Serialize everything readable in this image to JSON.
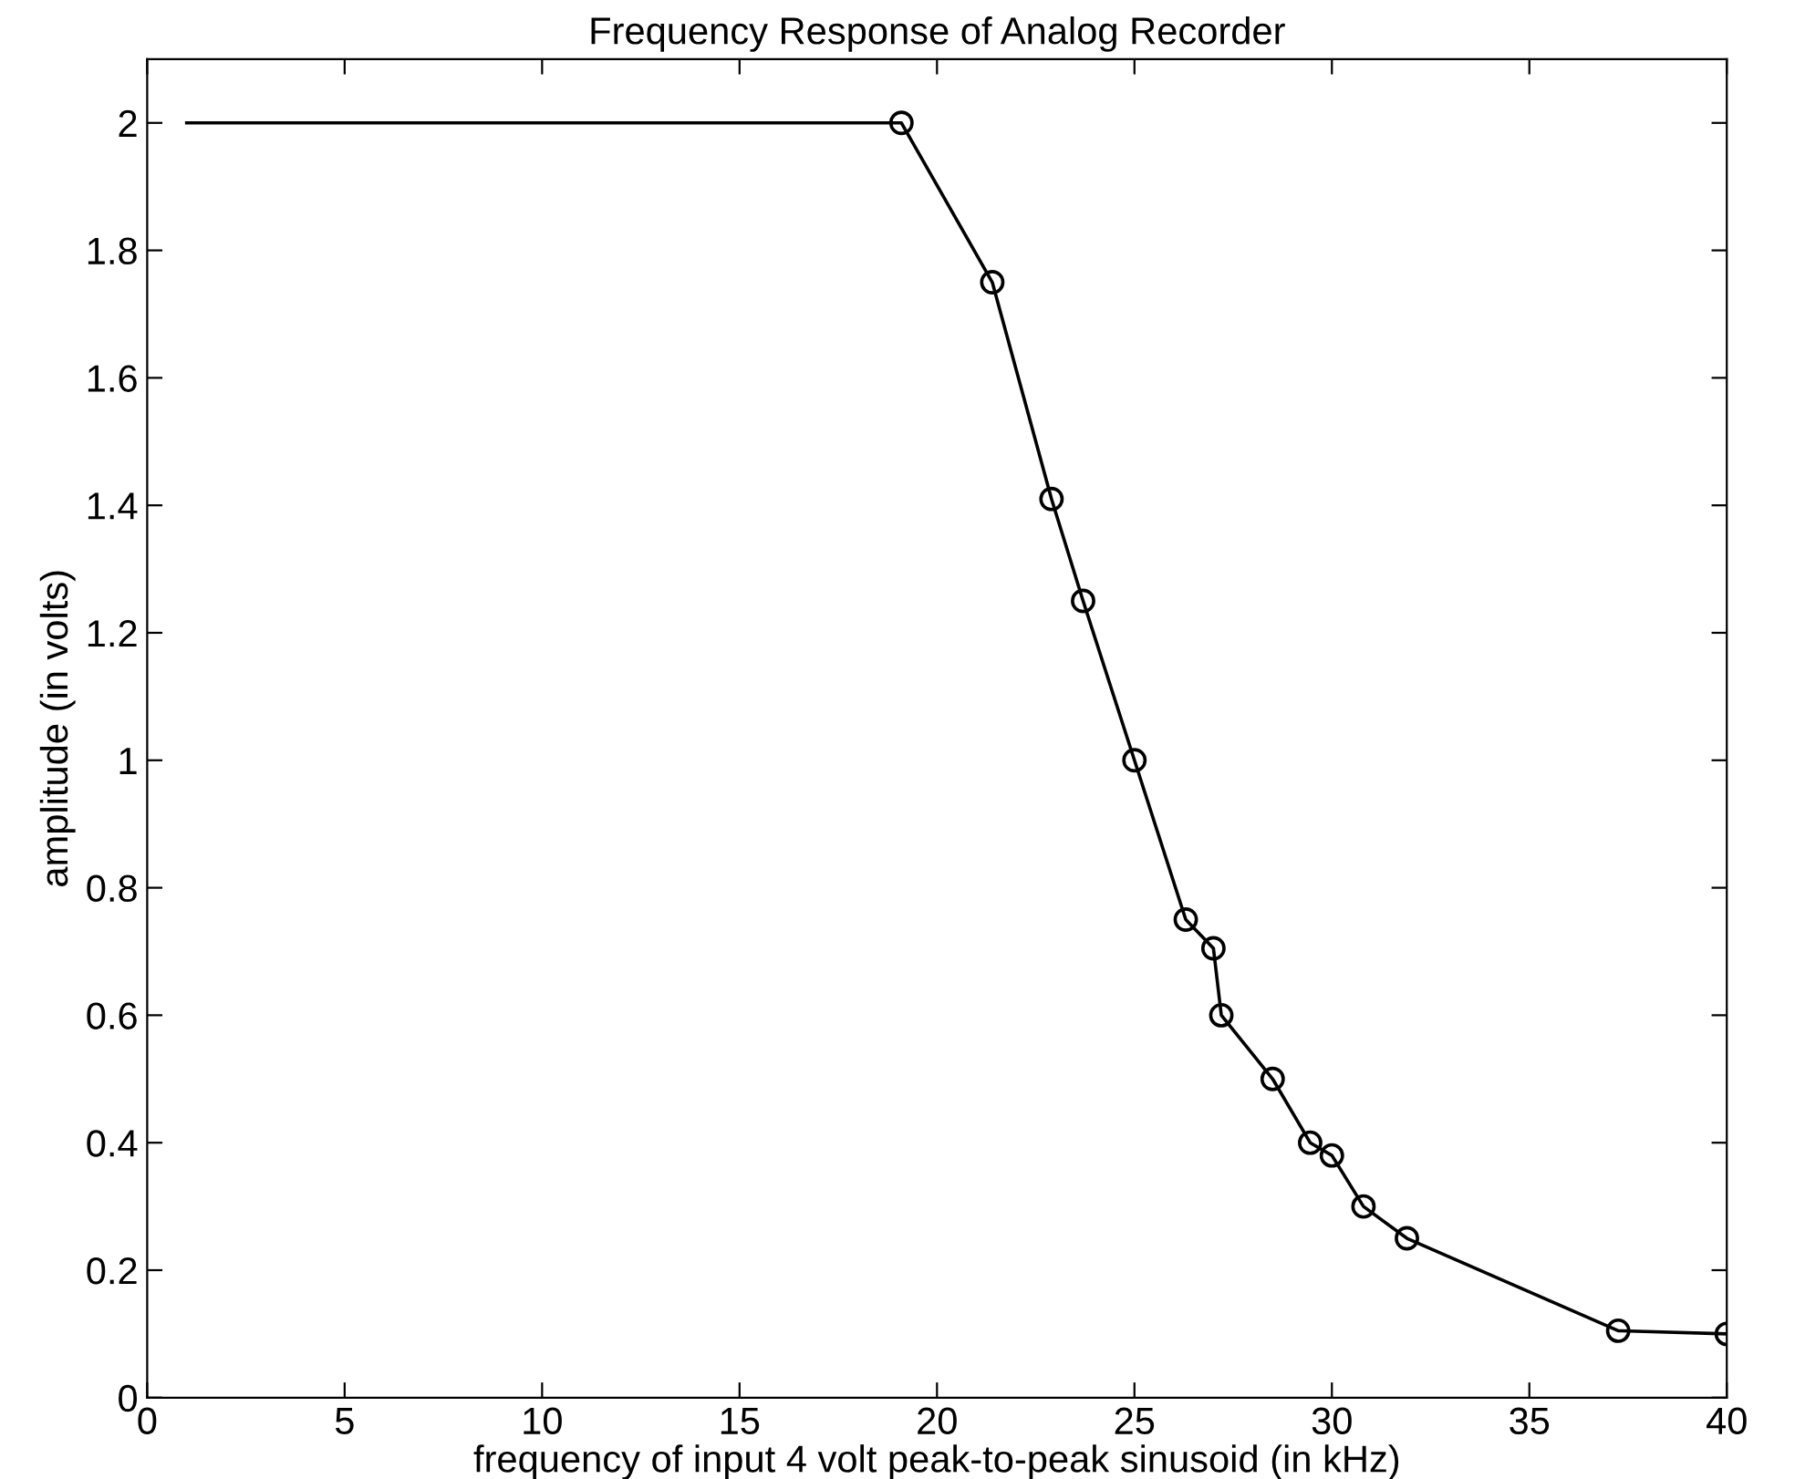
{
  "chart_data": {
    "type": "line",
    "title": "Frequency Response of Analog Recorder",
    "xlabel": "frequency of input 4 volt peak-to-peak sinusoid (in kHz)",
    "ylabel": "amplitude (in volts)",
    "series": [
      {
        "color": "#000000",
        "marker": "none",
        "line_style": "solid",
        "x": [
          1,
          19.1,
          21.4,
          22.9,
          23.7,
          25.0,
          26.3,
          27.0,
          27.2,
          28.5,
          29.45,
          30.0,
          30.8,
          31.9,
          37.25,
          40
        ],
        "values": [
          2.0,
          2.0,
          1.75,
          1.41,
          1.25,
          1.0,
          0.75,
          0.705,
          0.6,
          0.5,
          0.4,
          0.38,
          0.3,
          0.25,
          0.105,
          0.1
        ]
      },
      {
        "type": "scatter",
        "color": "#000000",
        "marker": "circle",
        "x": [
          19.1,
          21.4,
          22.9,
          23.7,
          25.0,
          26.3,
          27.0,
          27.2,
          28.5,
          29.45,
          30.0,
          30.8,
          31.9,
          37.25,
          40
        ],
        "values": [
          2.0,
          1.75,
          1.41,
          1.25,
          1.0,
          0.75,
          0.705,
          0.6,
          0.5,
          0.4,
          0.38,
          0.3,
          0.25,
          0.105,
          0.1
        ]
      }
    ],
    "xlim": [
      0,
      40
    ],
    "xticks": [
      0,
      5,
      10,
      15,
      20,
      25,
      30,
      35,
      40
    ],
    "ylim": [
      0,
      2.1
    ],
    "yticks": [
      0,
      0.2,
      0.4,
      0.6,
      0.8,
      1,
      1.2,
      1.4,
      1.6,
      1.8,
      2
    ],
    "grid": false,
    "legend": false
  }
}
